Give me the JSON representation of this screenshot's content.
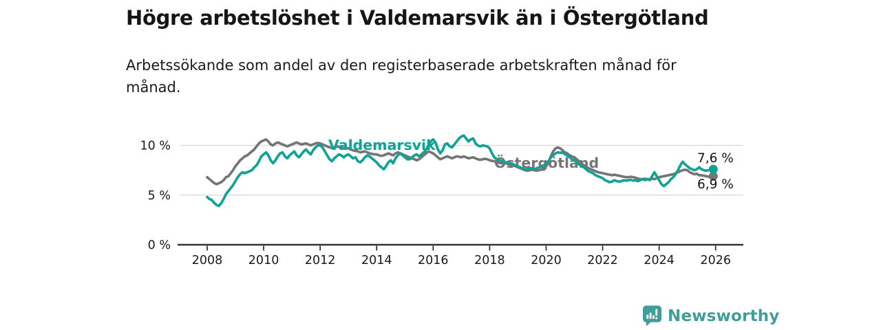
{
  "header": {
    "title": "Högre arbetslöshet i Valdemarsvik än i Östergötland",
    "subtitle": "Arbetssökande som andel av den registerbaserade arbetskraften månad för månad."
  },
  "branding": {
    "logo_text": "Newsworthy",
    "logo_icon": "bar-chart-speech-bubble-icon",
    "brand_color": "#3f9e99"
  },
  "chart_data": {
    "type": "line",
    "title": "Högre arbetslöshet i Valdemarsvik än i Östergötland",
    "subtitle": "Arbetssökande som andel av den registerbaserade arbetskraften månad för månad.",
    "unit": "%",
    "frequency": "monthly",
    "x_start": "2008-01",
    "x_end": "2025-12",
    "x_tick_labels": [
      "2008",
      "2010",
      "2012",
      "2014",
      "2016",
      "2018",
      "2020",
      "2022",
      "2024",
      "2026"
    ],
    "y_ticks": [
      0,
      5,
      10
    ],
    "y_tick_labels": [
      "0 %",
      "5 %",
      "10 %"
    ],
    "ylim": [
      0,
      11.6
    ],
    "grid": "horizontal",
    "legend_position": "inline-labels",
    "decimal_separator": ",",
    "series": [
      {
        "name": "Östergötland",
        "color": "#757575",
        "end_value": 6.9,
        "end_label": "6,9 %",
        "values": [
          6.8,
          6.6,
          6.4,
          6.2,
          6.1,
          6.2,
          6.3,
          6.5,
          6.8,
          6.9,
          7.2,
          7.5,
          7.9,
          8.2,
          8.5,
          8.7,
          8.9,
          9.0,
          9.2,
          9.4,
          9.6,
          9.9,
          10.2,
          10.4,
          10.5,
          10.6,
          10.4,
          10.1,
          10.0,
          10.2,
          10.3,
          10.2,
          10.1,
          10.0,
          9.9,
          10.0,
          10.1,
          10.2,
          10.3,
          10.2,
          10.1,
          10.15,
          10.2,
          10.1,
          10.0,
          10.1,
          10.2,
          10.25,
          10.2,
          10.1,
          10.0,
          9.9,
          9.8,
          9.75,
          9.8,
          9.9,
          9.85,
          9.8,
          9.7,
          9.75,
          9.7,
          9.6,
          9.5,
          9.45,
          9.4,
          9.3,
          9.35,
          9.4,
          9.3,
          9.2,
          9.15,
          9.1,
          9.1,
          9.0,
          8.95,
          9.0,
          9.1,
          9.2,
          9.1,
          9.0,
          9.2,
          9.3,
          9.2,
          9.1,
          9.0,
          8.9,
          8.8,
          8.7,
          8.6,
          8.5,
          8.6,
          8.8,
          9.0,
          9.2,
          9.4,
          9.3,
          9.2,
          9.0,
          8.8,
          8.6,
          8.7,
          8.8,
          8.9,
          8.8,
          8.7,
          8.8,
          8.9,
          8.85,
          8.8,
          8.9,
          8.8,
          8.7,
          8.75,
          8.8,
          8.7,
          8.6,
          8.55,
          8.6,
          8.65,
          8.6,
          8.5,
          8.45,
          8.4,
          8.3,
          8.25,
          8.2,
          8.25,
          8.2,
          8.1,
          8.0,
          7.95,
          7.9,
          7.8,
          7.7,
          7.6,
          7.5,
          7.45,
          7.5,
          7.55,
          7.5,
          7.45,
          7.5,
          7.6,
          7.7,
          7.9,
          8.3,
          8.9,
          9.4,
          9.7,
          9.8,
          9.7,
          9.5,
          9.3,
          9.2,
          9.0,
          8.9,
          8.8,
          8.6,
          8.4,
          8.2,
          8.0,
          7.9,
          7.7,
          7.6,
          7.5,
          7.4,
          7.3,
          7.25,
          7.2,
          7.15,
          7.1,
          7.05,
          7.0,
          7.05,
          7.0,
          6.95,
          6.9,
          6.85,
          6.8,
          6.8,
          6.85,
          6.8,
          6.75,
          6.65,
          6.6,
          6.6,
          6.65,
          6.6,
          6.6,
          6.65,
          6.6,
          6.7,
          6.8,
          6.85,
          6.9,
          6.95,
          7.0,
          7.05,
          7.1,
          7.2,
          7.3,
          7.4,
          7.5,
          7.55,
          7.5,
          7.3,
          7.2,
          7.1,
          7.15,
          7.0,
          7.0,
          6.95,
          6.9,
          6.85,
          6.9,
          6.9
        ]
      },
      {
        "name": "Valdemarsvik",
        "color": "#11a296",
        "end_value": 7.6,
        "end_label": "7,6 %",
        "values": [
          4.8,
          4.6,
          4.5,
          4.2,
          4.0,
          3.9,
          4.2,
          4.6,
          5.1,
          5.4,
          5.7,
          6.0,
          6.4,
          6.8,
          7.1,
          7.3,
          7.2,
          7.3,
          7.4,
          7.5,
          7.8,
          8.0,
          8.4,
          8.9,
          9.1,
          9.3,
          9.0,
          8.5,
          8.2,
          8.5,
          8.9,
          9.2,
          9.3,
          8.9,
          8.7,
          9.0,
          9.2,
          9.4,
          9.0,
          8.8,
          9.1,
          9.4,
          9.6,
          9.3,
          9.1,
          9.5,
          9.8,
          10.0,
          10.0,
          9.8,
          9.4,
          9.0,
          8.6,
          8.4,
          8.7,
          8.9,
          9.1,
          9.0,
          8.8,
          9.0,
          9.1,
          8.9,
          8.7,
          8.8,
          8.4,
          8.3,
          8.5,
          8.8,
          9.0,
          8.9,
          8.7,
          8.5,
          8.3,
          8.0,
          7.8,
          7.6,
          7.9,
          8.3,
          8.5,
          8.2,
          8.7,
          9.0,
          9.2,
          9.0,
          8.8,
          8.6,
          8.6,
          8.8,
          9.0,
          9.1,
          8.9,
          9.1,
          9.3,
          9.6,
          10.0,
          10.4,
          10.6,
          10.3,
          9.6,
          9.2,
          9.5,
          10.1,
          10.2,
          9.9,
          9.8,
          10.1,
          10.4,
          10.7,
          10.9,
          11.0,
          10.7,
          10.4,
          10.6,
          10.7,
          10.2,
          10.0,
          9.9,
          10.0,
          9.95,
          9.9,
          9.7,
          9.2,
          8.8,
          8.6,
          8.5,
          8.4,
          8.35,
          8.3,
          8.25,
          8.2,
          8.1,
          8.0,
          7.9,
          7.8,
          7.7,
          7.6,
          7.6,
          7.7,
          7.7,
          7.6,
          7.7,
          7.8,
          7.9,
          8.0,
          8.2,
          8.4,
          8.8,
          9.0,
          9.2,
          9.3,
          9.25,
          9.3,
          9.1,
          9.0,
          8.8,
          8.6,
          8.5,
          8.3,
          8.1,
          7.9,
          7.8,
          7.6,
          7.4,
          7.3,
          7.2,
          7.0,
          6.9,
          6.8,
          6.7,
          6.5,
          6.4,
          6.3,
          6.35,
          6.5,
          6.4,
          6.35,
          6.4,
          6.5,
          6.45,
          6.5,
          6.55,
          6.45,
          6.5,
          6.4,
          6.5,
          6.6,
          6.5,
          6.6,
          6.5,
          6.9,
          7.3,
          6.9,
          6.5,
          6.1,
          5.9,
          6.1,
          6.3,
          6.6,
          6.8,
          7.1,
          7.5,
          8.0,
          8.35,
          8.1,
          7.9,
          7.7,
          7.6,
          7.5,
          7.6,
          7.8,
          7.6,
          7.5,
          7.45,
          7.5,
          7.55,
          7.6
        ]
      }
    ]
  }
}
